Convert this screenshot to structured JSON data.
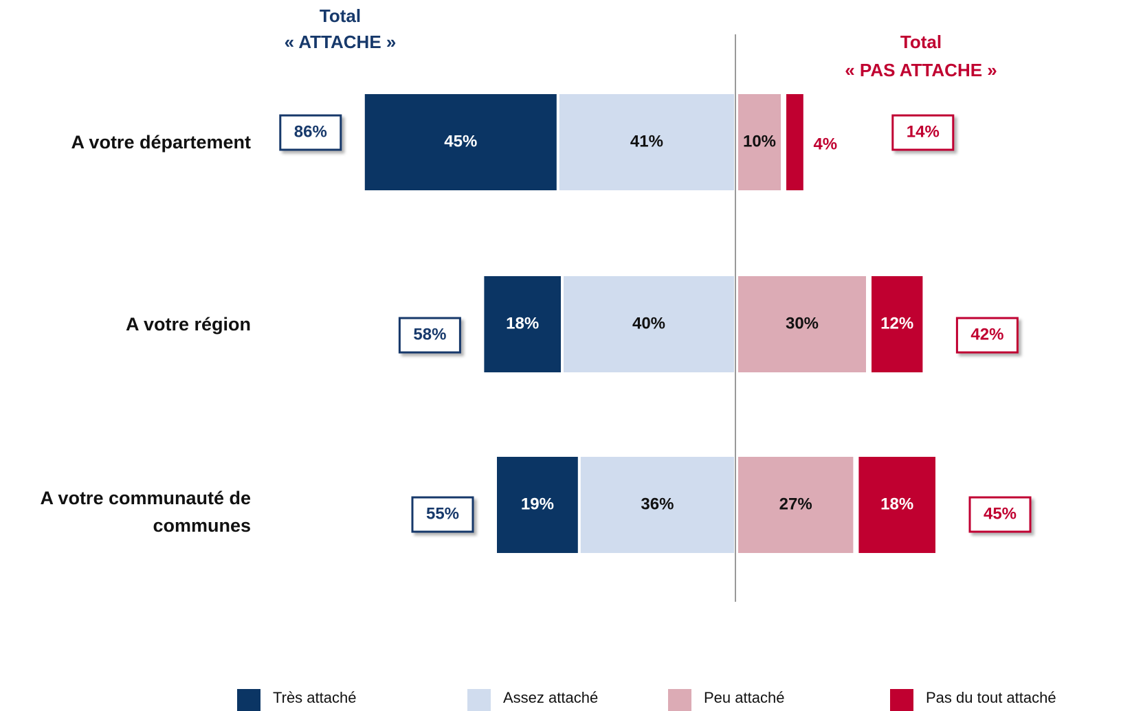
{
  "chart_data": {
    "type": "diverging_bar",
    "left_header": [
      "Total",
      "« ATTACHE »"
    ],
    "right_header": [
      "Total",
      "« PAS ATTACHE »"
    ],
    "categories": [
      "A votre département",
      "A votre région",
      "A votre communauté de communes"
    ],
    "series": [
      {
        "name": "Très attaché",
        "color": "#0b3564",
        "values": [
          45,
          18,
          19
        ],
        "value_labels": [
          "45%",
          "18%",
          "19%"
        ]
      },
      {
        "name": "Assez attaché",
        "color": "#d0dcee",
        "values": [
          41,
          40,
          36
        ],
        "value_labels": [
          "41%",
          "40%",
          "36%"
        ]
      },
      {
        "name": "Peu attaché",
        "color": "#dcabb5",
        "values": [
          10,
          30,
          27
        ],
        "value_labels": [
          "10%",
          "30%",
          "27%"
        ]
      },
      {
        "name": "Pas du tout attaché",
        "color": "#c00030",
        "values": [
          4,
          12,
          18
        ],
        "value_labels": [
          "4%",
          "12%",
          "18%"
        ]
      }
    ],
    "totals": [
      {
        "color": "#17396b",
        "values": [
          86,
          58,
          55
        ],
        "value_labels": [
          "86%",
          "58%",
          "55%"
        ]
      },
      {
        "color": "#c00030",
        "values": [
          14,
          42,
          45
        ],
        "value_labels": [
          "14%",
          "42%",
          "45%"
        ]
      }
    ]
  }
}
